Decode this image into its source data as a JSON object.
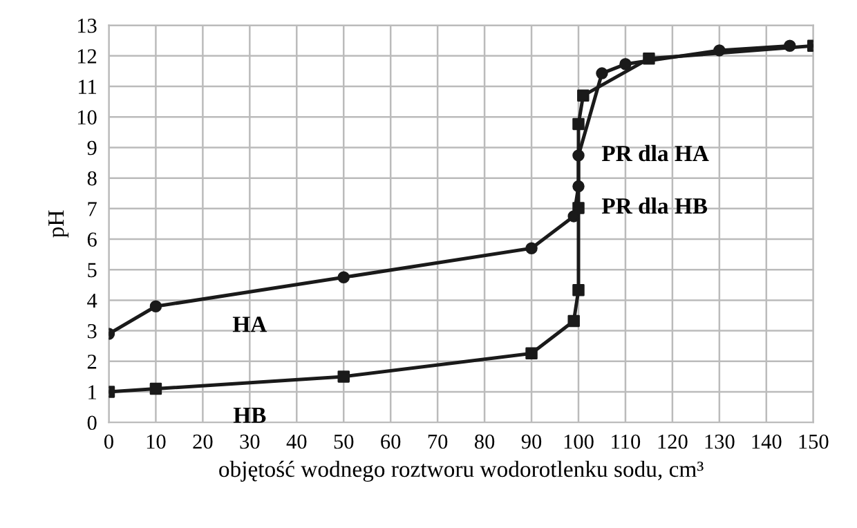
{
  "chart_data": {
    "type": "line",
    "xlabel": "objętość wodnego roztworu wodorotlenku sodu, cm³",
    "ylabel": "pH",
    "xlim": [
      0,
      150
    ],
    "xticks": [
      0,
      10,
      20,
      30,
      40,
      50,
      60,
      70,
      80,
      90,
      100,
      110,
      120,
      130,
      140,
      150
    ],
    "ylim": [
      0,
      13
    ],
    "yticks": [
      0,
      1,
      2,
      3,
      4,
      5,
      6,
      7,
      8,
      9,
      10,
      11,
      12,
      13
    ],
    "grid": true,
    "legend": false,
    "series": [
      {
        "color": "#1a1a1a",
        "marker": "circle",
        "x": [
          0,
          10,
          50,
          90,
          99,
          100,
          100,
          105,
          110,
          130,
          145
        ],
        "values": [
          2.9,
          3.8,
          4.75,
          5.7,
          6.75,
          7.73,
          8.74,
          11.43,
          11.73,
          12.18,
          12.33
        ]
      },
      {
        "color": "#1a1a1a",
        "marker": "square",
        "x": [
          0,
          10,
          50,
          90,
          99,
          100,
          100,
          100,
          101,
          115,
          150
        ],
        "values": [
          1,
          1.1,
          1.5,
          2.26,
          3.32,
          4.33,
          7.02,
          9.77,
          10.7,
          11.91,
          12.33
        ]
      }
    ],
    "annotations": [
      "HA",
      "HB",
      {
        "text": "PR dla HA",
        "x": 100,
        "y": 8.74
      },
      {
        "text": "PR dla HB",
        "x": 100,
        "y": 7.02
      }
    ]
  }
}
